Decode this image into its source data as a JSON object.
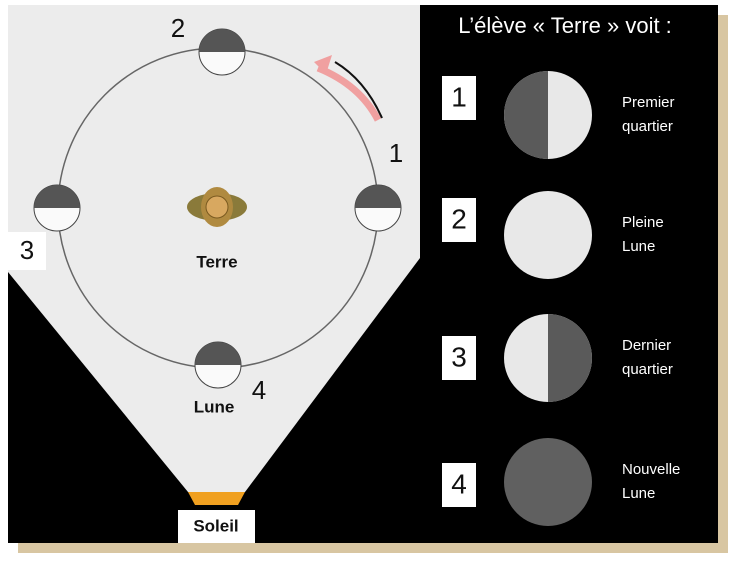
{
  "title": "L’élève « Terre » voit :",
  "earth_label": "Terre",
  "moon_label": "Lune",
  "sun_label": "Soleil",
  "orbit_numbers": [
    "1",
    "2",
    "3",
    "4"
  ],
  "phases": [
    {
      "number": "1",
      "lines": [
        "Premier",
        "quartier"
      ]
    },
    {
      "number": "2",
      "lines": [
        "Pleine",
        "Lune"
      ]
    },
    {
      "number": "3",
      "lines": [
        "Dernier",
        "quartier"
      ]
    },
    {
      "number": "4",
      "lines": [
        "Nouvelle",
        "Lune"
      ]
    }
  ]
}
